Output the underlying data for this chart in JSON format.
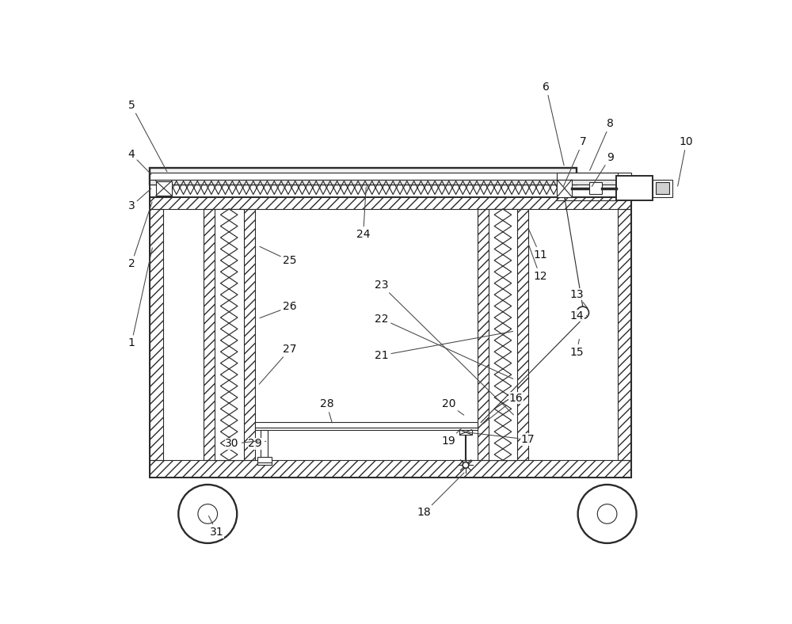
{
  "fig_width": 10.0,
  "fig_height": 7.88,
  "dpi": 100,
  "lc": "#2a2a2a",
  "lw_main": 1.4,
  "lw_thin": 0.8,
  "hatch_density": "///",
  "coil_color": "#2a2a2a",
  "label_fs": 10,
  "label_color": "#111111"
}
